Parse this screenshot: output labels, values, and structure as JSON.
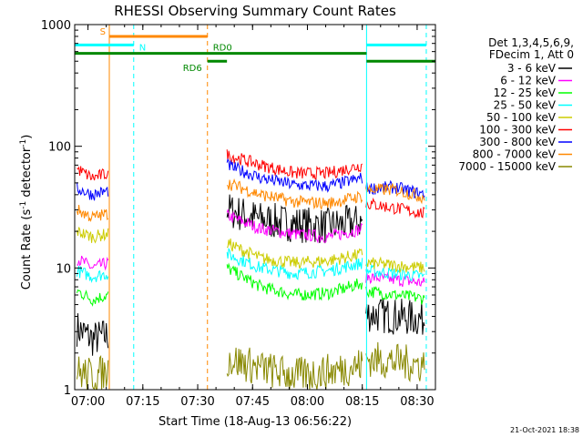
{
  "chart_data": {
    "type": "line",
    "title": "RHESSI Observing Summary Count Rates",
    "xlabel": "Start Time (18-Aug-13 06:56:22)",
    "ylabel_prefix": "Count Rate (s",
    "ylabel_sup": "-1",
    "ylabel_suffix": " detector",
    "ylabel_sup2": "-1",
    "ylabel_close": ")",
    "yscale": "log",
    "ylim": [
      1,
      1000
    ],
    "xlim": [
      "06:56:22",
      "08:35:00"
    ],
    "x_ticks": [
      "07:00",
      "07:15",
      "07:30",
      "07:45",
      "08:00",
      "08:15",
      "08:30"
    ],
    "y_ticks": [
      "1",
      "10",
      "100",
      "1000"
    ],
    "timestamp": "21-Oct-2021 18:38",
    "legend": {
      "header_line1": "Det 1,3,4,5,6,9,",
      "header_line2": "FDecim 1, Att 0",
      "position": "right"
    },
    "series": [
      {
        "name": "3 - 6 keV",
        "color": "#000000",
        "segments": [
          {
            "t": [
              "06:57:00",
              "07:05:30"
            ],
            "levels": [
              3.2,
              2.6,
              2.8
            ]
          },
          {
            "t": [
              "07:38:00",
              "08:15:00"
            ],
            "levels": [
              30,
              25,
              23,
              22,
              24
            ]
          },
          {
            "t": [
              "08:16:00",
              "08:32:00"
            ],
            "levels": [
              4.2,
              4.0,
              3.8
            ]
          }
        ]
      },
      {
        "name": "6 - 12 keV",
        "color": "#ff00ff",
        "segments": [
          {
            "t": [
              "06:57:00",
              "07:05:30"
            ],
            "levels": [
              12,
              10,
              11
            ]
          },
          {
            "t": [
              "07:38:00",
              "08:15:00"
            ],
            "levels": [
              27,
              21,
              19,
              18,
              21
            ]
          },
          {
            "t": [
              "08:16:00",
              "08:32:00"
            ],
            "levels": [
              8.5,
              8,
              7.5
            ]
          }
        ]
      },
      {
        "name": "12 - 25 keV",
        "color": "#00ff00",
        "segments": [
          {
            "t": [
              "06:57:00",
              "07:05:30"
            ],
            "levels": [
              6.5,
              5.5,
              6
            ]
          },
          {
            "t": [
              "07:38:00",
              "08:15:00"
            ],
            "levels": [
              10,
              7,
              6,
              6.2,
              7.5
            ]
          },
          {
            "t": [
              "08:16:00",
              "08:32:00"
            ],
            "levels": [
              6.5,
              6,
              5.6
            ]
          }
        ]
      },
      {
        "name": "25 - 50 keV",
        "color": "#00ffff",
        "segments": [
          {
            "t": [
              "06:57:00",
              "07:05:30"
            ],
            "levels": [
              9.5,
              8.5,
              9
            ]
          },
          {
            "t": [
              "07:38:00",
              "08:15:00"
            ],
            "levels": [
              13,
              10,
              9,
              9.5,
              11
            ]
          },
          {
            "t": [
              "08:16:00",
              "08:32:00"
            ],
            "levels": [
              9.5,
              9,
              8.5
            ]
          }
        ]
      },
      {
        "name": "50 - 100 keV",
        "color": "#cccc00",
        "segments": [
          {
            "t": [
              "06:57:00",
              "07:05:30"
            ],
            "levels": [
              20,
              18,
              19
            ]
          },
          {
            "t": [
              "07:38:00",
              "08:15:00"
            ],
            "levels": [
              16,
              12,
              11,
              11.5,
              13
            ]
          },
          {
            "t": [
              "08:16:00",
              "08:32:00"
            ],
            "levels": [
              11,
              10.5,
              10
            ]
          }
        ]
      },
      {
        "name": "100 - 300 keV",
        "color": "#ff0000",
        "segments": [
          {
            "t": [
              "06:57:00",
              "07:05:30"
            ],
            "levels": [
              65,
              55,
              60
            ]
          },
          {
            "t": [
              "07:38:00",
              "08:15:00"
            ],
            "levels": [
              85,
              70,
              60,
              60,
              70
            ]
          },
          {
            "t": [
              "08:16:00",
              "08:32:00"
            ],
            "levels": [
              34,
              31,
              28
            ]
          }
        ]
      },
      {
        "name": "300 - 800 keV",
        "color": "#0000ff",
        "segments": [
          {
            "t": [
              "06:57:00",
              "07:05:30"
            ],
            "levels": [
              45,
              40,
              43
            ]
          },
          {
            "t": [
              "07:38:00",
              "08:15:00"
            ],
            "levels": [
              70,
              55,
              48,
              47,
              55
            ]
          },
          {
            "t": [
              "08:16:00",
              "08:32:00"
            ],
            "levels": [
              45,
              46,
              40
            ]
          }
        ]
      },
      {
        "name": "800 - 7000 keV",
        "color": "#ff8800",
        "segments": [
          {
            "t": [
              "06:57:00",
              "07:05:30"
            ],
            "levels": [
              30,
              26,
              28
            ]
          },
          {
            "t": [
              "07:38:00",
              "08:15:00"
            ],
            "levels": [
              50,
              40,
              35,
              34,
              39
            ]
          },
          {
            "t": [
              "08:16:00",
              "08:32:00"
            ],
            "levels": [
              44,
              44,
              38
            ]
          }
        ]
      },
      {
        "name": "7000 - 15000 keV",
        "color": "#888800",
        "segments": [
          {
            "t": [
              "06:57:00",
              "07:05:30"
            ],
            "levels": [
              1.4,
              1.3,
              1.4
            ]
          },
          {
            "t": [
              "07:38:00",
              "08:15:00"
            ],
            "levels": [
              1.8,
              1.5,
              1.3,
              1.4,
              1.6
            ]
          },
          {
            "t": [
              "08:16:00",
              "08:32:00"
            ],
            "levels": [
              1.8,
              1.7,
              1.6
            ]
          }
        ]
      }
    ],
    "state_bars": [
      {
        "label": "S",
        "color": "#ff8800",
        "level": 800,
        "t": [
          "07:05:50",
          "07:32:40"
        ]
      },
      {
        "label": "N",
        "color": "#00ffff",
        "level": 680,
        "t": [
          "06:56:22",
          "07:12:30"
        ]
      },
      {
        "label": "",
        "color": "#00ffff",
        "level": 680,
        "t": [
          "08:16:10",
          "08:32:30"
        ]
      },
      {
        "label": "RD0",
        "color": "#008800",
        "level": 580,
        "t": [
          "06:56:22",
          "08:16:10"
        ]
      },
      {
        "label": "RD6",
        "color": "#008800",
        "level": 500,
        "t": [
          "07:32:40",
          "07:38:00"
        ]
      },
      {
        "label": "",
        "color": "#008800",
        "level": 500,
        "t": [
          "08:16:10",
          "08:35:00"
        ]
      }
    ],
    "vertical_markers": [
      {
        "t": "07:05:50",
        "color": "#ff8800",
        "style": "solid"
      },
      {
        "t": "07:12:30",
        "color": "#00ffff",
        "style": "dashed"
      },
      {
        "t": "07:32:40",
        "color": "#ff8800",
        "style": "dashed"
      },
      {
        "t": "08:16:10",
        "color": "#00ffff",
        "style": "solid"
      },
      {
        "t": "08:32:30",
        "color": "#00ffff",
        "style": "dashed"
      }
    ]
  }
}
